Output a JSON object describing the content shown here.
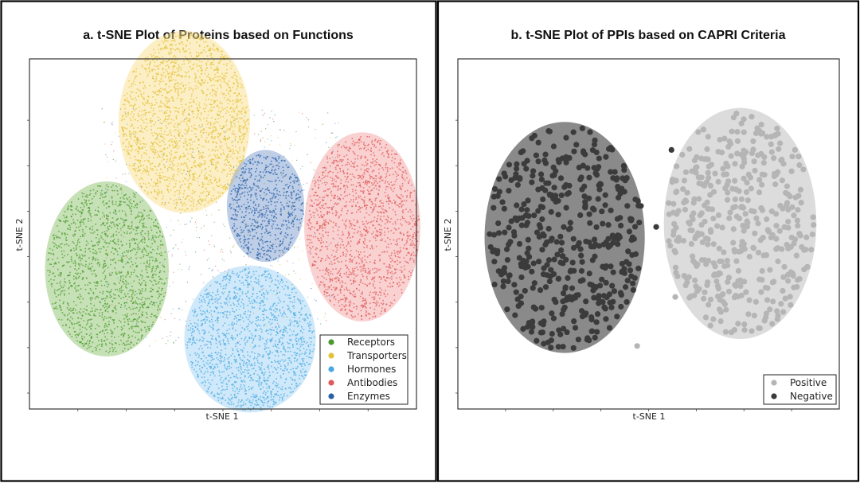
{
  "chart_data": [
    {
      "type": "scatter",
      "title": "a. t-SNE Plot of Proteins based on Functions",
      "xlabel": "t-SNE 1",
      "ylabel": "t-SNE 2",
      "grid": false,
      "legend_placement": "bottom-right",
      "series": [
        {
          "name": "Receptors",
          "color": "#4a9a2e",
          "fill_color": "#8fc46e",
          "cluster_center": [
            0.2,
            0.4
          ],
          "cluster_spread": [
            0.16,
            0.25
          ],
          "point_count": 1500
        },
        {
          "name": "Transporters",
          "color": "#e2c23a",
          "fill_color": "#fbe08c",
          "cluster_center": [
            0.4,
            0.82
          ],
          "cluster_spread": [
            0.17,
            0.26
          ],
          "point_count": 1900
        },
        {
          "name": "Hormones",
          "color": "#4aa8e0",
          "fill_color": "#9fd3f5",
          "cluster_center": [
            0.57,
            0.2
          ],
          "cluster_spread": [
            0.17,
            0.21
          ],
          "point_count": 1500
        },
        {
          "name": "Antibodies",
          "color": "#e05a5a",
          "fill_color": "#f4a3a3",
          "cluster_center": [
            0.86,
            0.52
          ],
          "cluster_spread": [
            0.15,
            0.27
          ],
          "point_count": 1600
        },
        {
          "name": "Enzymes",
          "color": "#2a62a8",
          "fill_color": "#7f9ed0",
          "cluster_center": [
            0.61,
            0.58
          ],
          "cluster_spread": [
            0.1,
            0.16
          ],
          "point_count": 700
        }
      ]
    },
    {
      "type": "scatter",
      "title": "b. t-SNE Plot of PPIs based on CAPRI Criteria",
      "xlabel": "t-SNE 1",
      "ylabel": "t-SNE 2",
      "grid": false,
      "legend_placement": "bottom-right",
      "series": [
        {
          "name": "Positive",
          "color": "#b5b5b5",
          "fill_color": "#dcdcdc",
          "cluster_center": [
            0.74,
            0.53
          ],
          "cluster_spread": [
            0.2,
            0.33
          ],
          "point_count": 420
        },
        {
          "name": "Negative",
          "color": "#3b3b3b",
          "fill_color": "#8a8a8a",
          "cluster_center": [
            0.28,
            0.49
          ],
          "cluster_spread": [
            0.21,
            0.33
          ],
          "point_count": 440
        }
      ]
    }
  ]
}
